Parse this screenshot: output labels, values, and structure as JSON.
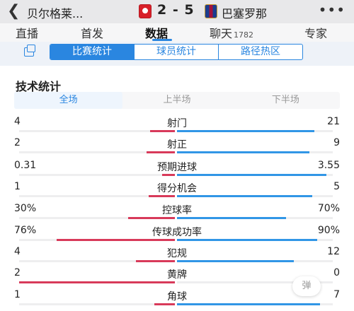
{
  "header": {
    "back_icon": "chevron-left-icon",
    "home_team": "贝尔格莱...",
    "score": "2 - 5",
    "away_team": "巴塞罗那",
    "more_icon": "ellipsis-icon"
  },
  "tabs": [
    {
      "label": "直播",
      "active": false
    },
    {
      "label": "首发",
      "active": false
    },
    {
      "label": "数据",
      "active": true
    },
    {
      "label": "聊天",
      "badge": "1782",
      "active": false
    },
    {
      "label": "专家",
      "active": false
    }
  ],
  "subtabs": [
    {
      "label": "比赛统计",
      "active": true
    },
    {
      "label": "球员统计",
      "active": false
    },
    {
      "label": "路径热区",
      "active": false
    }
  ],
  "section_title": "技术统计",
  "half_tabs": [
    {
      "label": "全场",
      "active": true
    },
    {
      "label": "上半场",
      "active": false
    },
    {
      "label": "下半场",
      "active": false
    }
  ],
  "stats": [
    {
      "name": "射门",
      "left": "4",
      "right": "21",
      "left_share": 0.16,
      "right_share": 0.88
    },
    {
      "name": "射正",
      "left": "2",
      "right": "9",
      "left_share": 0.18,
      "right_share": 0.85
    },
    {
      "name": "预期进球",
      "left": "0.31",
      "right": "3.55",
      "left_share": 0.08,
      "right_share": 0.96
    },
    {
      "name": "得分机会",
      "left": "1",
      "right": "5",
      "left_share": 0.17,
      "right_share": 0.87
    },
    {
      "name": "控球率",
      "left": "30%",
      "right": "70%",
      "left_share": 0.3,
      "right_share": 0.7
    },
    {
      "name": "传球成功率",
      "left": "76%",
      "right": "90%",
      "left_share": 0.76,
      "right_share": 0.9
    },
    {
      "name": "犯规",
      "left": "4",
      "right": "12",
      "left_share": 0.25,
      "right_share": 0.75
    },
    {
      "name": "黄牌",
      "left": "2",
      "right": "0",
      "left_share": 1.0,
      "right_share": 0.0
    },
    {
      "name": "角球",
      "left": "1",
      "right": "7",
      "left_share": 0.13,
      "right_share": 0.92
    }
  ],
  "danmu_label": "弹",
  "colors": {
    "accent": "#2a86e0",
    "home": "#d83a5a",
    "away": "#3196e6"
  }
}
